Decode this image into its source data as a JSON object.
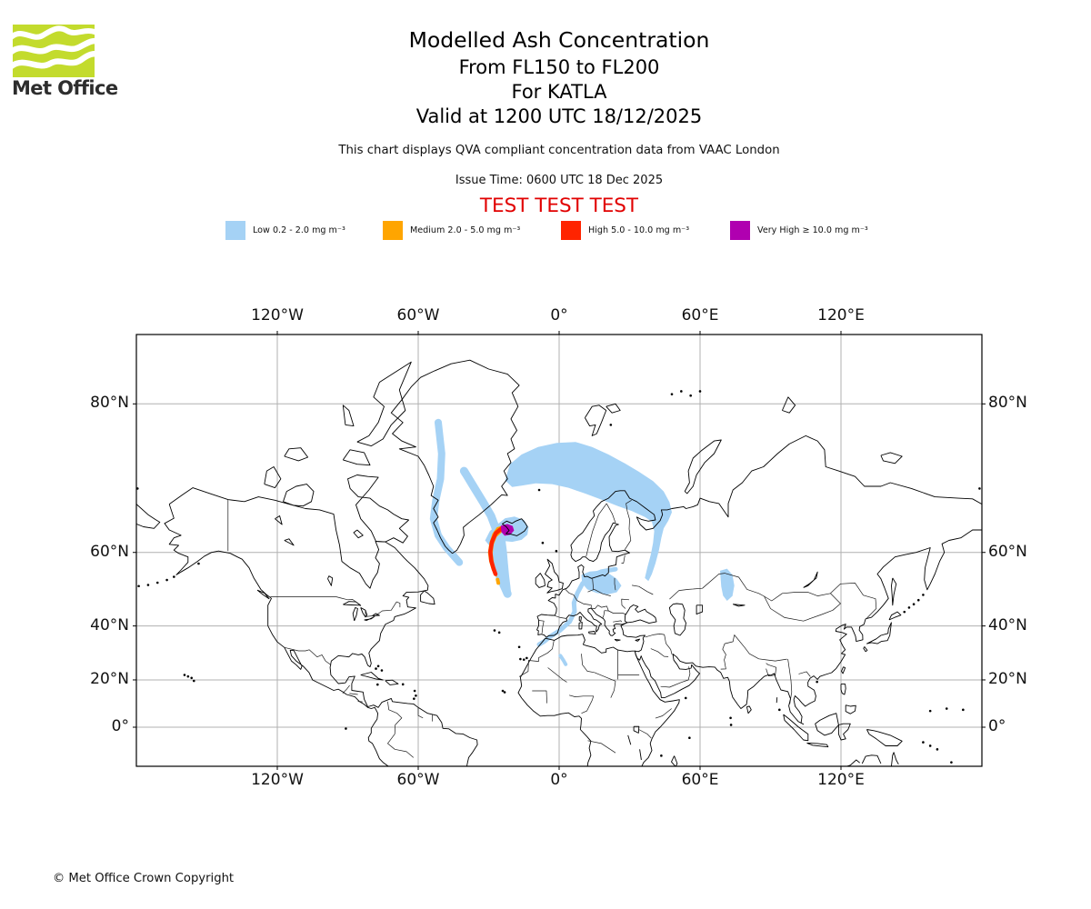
{
  "logo": {
    "brand": "Met Office",
    "square_color": "#c3db2d",
    "wordmark_color": "#2d2d2d"
  },
  "header": {
    "title": "Modelled Ash Concentration",
    "flight_levels": "From FL150 to FL200",
    "volcano": "For KATLA",
    "valid": "Valid at 1200 UTC 18/12/2025",
    "note": "This chart displays QVA compliant concentration data from VAAC London",
    "issue": "Issue Time: 0600 UTC 18 Dec 2025",
    "test_banner": "TEST TEST TEST",
    "test_color": "#e10000"
  },
  "legend": {
    "items": [
      {
        "level": "Low",
        "label": "Low 0.2 - 2.0 mg m⁻³",
        "color": "#a5d2f5"
      },
      {
        "level": "Medium",
        "label": "Medium 2.0 - 5.0 mg m⁻³",
        "color": "#ffa500"
      },
      {
        "level": "High",
        "label": "High 5.0 - 10.0 mg m⁻³",
        "color": "#ff2400"
      },
      {
        "level": "Very High",
        "label": "Very High ≥ 10.0 mg m⁻³",
        "color": "#b000b0"
      }
    ]
  },
  "footer": {
    "copyright": "© Met Office Crown Copyright"
  },
  "chart_data": {
    "type": "map",
    "projection": "mercator",
    "extent": {
      "lon_min": -180,
      "lon_max": 180,
      "lat_min": -16.7,
      "lat_max": 84.1
    },
    "grid": {
      "color": "#b0b0b0",
      "lons": [
        -120,
        -60,
        0,
        60,
        120
      ],
      "lats": [
        80,
        60,
        40,
        20,
        0
      ]
    },
    "x_tick_labels": [
      "120°W",
      "60°W",
      "0°",
      "60°E",
      "120°E"
    ],
    "y_tick_labels": [
      "80°N",
      "60°N",
      "40°N",
      "20°N",
      "0°"
    ],
    "volcano": "KATLA",
    "valid_time": "1200 UTC 18/12/2025",
    "ash_regions": [
      {
        "name": "barents-sea-band",
        "level": "Low",
        "kind": "fill",
        "points": [
          [
            -23,
            72.3
          ],
          [
            -21,
            74.3
          ],
          [
            -16,
            75.4
          ],
          [
            -9,
            76.2
          ],
          [
            -1,
            76.6
          ],
          [
            7,
            76.7
          ],
          [
            14,
            76.2
          ],
          [
            21,
            75.4
          ],
          [
            28,
            74.4
          ],
          [
            34,
            73.4
          ],
          [
            40,
            72.2
          ],
          [
            44.5,
            70.8
          ],
          [
            47,
            69.2
          ],
          [
            48,
            67.6
          ],
          [
            46.5,
            66.2
          ],
          [
            44.5,
            64.8
          ],
          [
            43.5,
            63
          ],
          [
            42.5,
            60.5
          ],
          [
            41,
            57.5
          ],
          [
            39.5,
            55
          ],
          [
            38,
            53.2
          ],
          [
            36.5,
            54
          ],
          [
            37.5,
            56.5
          ],
          [
            39,
            59.5
          ],
          [
            40,
            62
          ],
          [
            40.5,
            64.3
          ],
          [
            39.5,
            66
          ],
          [
            36.5,
            66.8
          ],
          [
            31,
            67.8
          ],
          [
            25,
            68.6
          ],
          [
            18,
            69.6
          ],
          [
            11,
            70.5
          ],
          [
            4,
            71.3
          ],
          [
            -3,
            71.8
          ],
          [
            -10,
            71.9
          ],
          [
            -16,
            71.6
          ],
          [
            -20,
            71.4
          ],
          [
            -23,
            72.3
          ]
        ]
      },
      {
        "name": "baltic-poland-patch",
        "level": "Low",
        "kind": "fill",
        "points": [
          [
            9.5,
            54.8
          ],
          [
            13,
            55.6
          ],
          [
            17,
            55.8
          ],
          [
            21,
            55.2
          ],
          [
            24.5,
            53.8
          ],
          [
            26.5,
            52
          ],
          [
            24.5,
            50.2
          ],
          [
            20.5,
            49.6
          ],
          [
            16,
            50
          ],
          [
            12,
            51
          ],
          [
            9.8,
            52.6
          ],
          [
            9.5,
            54.8
          ]
        ]
      },
      {
        "name": "ural-patch",
        "level": "Low",
        "kind": "fill",
        "points": [
          [
            68.5,
            55.8
          ],
          [
            71.5,
            56.3
          ],
          [
            73.8,
            54.8
          ],
          [
            74.6,
            52
          ],
          [
            73.8,
            49.2
          ],
          [
            71.5,
            47.8
          ],
          [
            69.8,
            49.3
          ],
          [
            69,
            51.8
          ],
          [
            68.5,
            55.8
          ]
        ]
      },
      {
        "name": "iceland-source-cloud",
        "level": "Low",
        "kind": "fill",
        "points": [
          [
            -28,
            64
          ],
          [
            -26,
            65.6
          ],
          [
            -23,
            66.6
          ],
          [
            -19,
            66.9
          ],
          [
            -15,
            66.3
          ],
          [
            -13,
            65
          ],
          [
            -13.5,
            63.6
          ],
          [
            -16,
            62.6
          ],
          [
            -20,
            62.2
          ],
          [
            -24,
            62.4
          ],
          [
            -26.6,
            63
          ],
          [
            -28,
            64
          ]
        ]
      },
      {
        "name": "plume-tail-envelope",
        "level": "Low",
        "kind": "fill",
        "points": [
          [
            -31.5,
            62.5
          ],
          [
            -29.5,
            64.3
          ],
          [
            -27,
            65.2
          ],
          [
            -24.5,
            64.6
          ],
          [
            -23,
            63
          ],
          [
            -22.3,
            60.5
          ],
          [
            -21.8,
            57.5
          ],
          [
            -21.3,
            54.5
          ],
          [
            -20.8,
            52
          ],
          [
            -20.5,
            50.3
          ],
          [
            -22.6,
            50
          ],
          [
            -23.8,
            52.5
          ],
          [
            -25.2,
            55.5
          ],
          [
            -27,
            58.5
          ],
          [
            -29,
            61
          ],
          [
            -31.5,
            62.5
          ]
        ]
      },
      {
        "name": "greenland-west-streak",
        "level": "Low",
        "kind": "stroke",
        "width": 8,
        "points": [
          [
            -51.5,
            78.5
          ],
          [
            -50,
            75.5
          ],
          [
            -50.5,
            72.5
          ],
          [
            -52.5,
            69.5
          ],
          [
            -53.5,
            66.5
          ],
          [
            -51.5,
            63.5
          ],
          [
            -48,
            61
          ],
          [
            -44.5,
            59
          ],
          [
            -42.5,
            57.8
          ]
        ]
      },
      {
        "name": "greenland-east-streak",
        "level": "Low",
        "kind": "stroke",
        "width": 9,
        "points": [
          [
            -40.5,
            73.5
          ],
          [
            -36.5,
            71.5
          ],
          [
            -32.5,
            69.3
          ],
          [
            -29,
            67
          ],
          [
            -27,
            64.8
          ],
          [
            -26.3,
            62
          ],
          [
            -27.5,
            59.3
          ],
          [
            -26.8,
            56.8
          ],
          [
            -25,
            54
          ],
          [
            -23,
            51.3
          ],
          [
            -22,
            49.8
          ]
        ]
      },
      {
        "name": "europe-streak",
        "level": "Low",
        "kind": "stroke",
        "width": 5,
        "points": [
          [
            24,
            56.2
          ],
          [
            18,
            55.6
          ],
          [
            13.5,
            54.6
          ],
          [
            10,
            52.6
          ],
          [
            7.8,
            50
          ],
          [
            6.3,
            47.2
          ],
          [
            6.6,
            44.6
          ],
          [
            4.5,
            41.4
          ],
          [
            0.5,
            38.6
          ],
          [
            -3.5,
            36.6
          ],
          [
            -6.5,
            34.6
          ],
          [
            -8.5,
            33.6
          ]
        ]
      },
      {
        "name": "algeria-dots",
        "level": "Low",
        "kind": "stroke",
        "width": 4,
        "points": [
          [
            0.5,
            29.5
          ],
          [
            1.8,
            27.8
          ],
          [
            2.8,
            26.2
          ]
        ]
      },
      {
        "name": "medium-plume-arc",
        "level": "Medium",
        "kind": "fill",
        "points": [
          [
            -20.5,
            64.9
          ],
          [
            -23.5,
            65.4
          ],
          [
            -26.5,
            65
          ],
          [
            -28.4,
            63.8
          ],
          [
            -29.7,
            62
          ],
          [
            -30.3,
            60
          ],
          [
            -29.8,
            58
          ],
          [
            -28.8,
            56.2
          ],
          [
            -27.6,
            54.6
          ],
          [
            -26.4,
            54.3
          ],
          [
            -26.9,
            55.9
          ],
          [
            -27.8,
            57.8
          ],
          [
            -28.3,
            59.8
          ],
          [
            -27.9,
            61.6
          ],
          [
            -26.6,
            63.2
          ],
          [
            -24.3,
            64.1
          ],
          [
            -21.5,
            64.2
          ],
          [
            -20.5,
            64.9
          ]
        ]
      },
      {
        "name": "medium-south-dots",
        "level": "Medium",
        "kind": "stroke",
        "width": 4,
        "points": [
          [
            -26.2,
            53.6
          ],
          [
            -25.9,
            52.7
          ]
        ]
      },
      {
        "name": "high-plume-core",
        "level": "High",
        "kind": "stroke",
        "width": 4.5,
        "points": [
          [
            -21.5,
            64.7
          ],
          [
            -24.5,
            64.8
          ],
          [
            -27,
            63.9
          ],
          [
            -28.6,
            62.2
          ],
          [
            -29.3,
            60.2
          ],
          [
            -28.9,
            58.2
          ],
          [
            -28,
            56.4
          ],
          [
            -27.1,
            55
          ]
        ]
      },
      {
        "name": "very-high-source-blob",
        "level": "Very High",
        "kind": "fill",
        "points": [
          [
            -24.8,
            65.3
          ],
          [
            -22,
            65.6
          ],
          [
            -19.8,
            65.2
          ],
          [
            -19.2,
            64.4
          ],
          [
            -20.8,
            63.6
          ],
          [
            -23.2,
            63.4
          ],
          [
            -24.6,
            64.1
          ],
          [
            -24.8,
            65.3
          ]
        ]
      }
    ]
  }
}
